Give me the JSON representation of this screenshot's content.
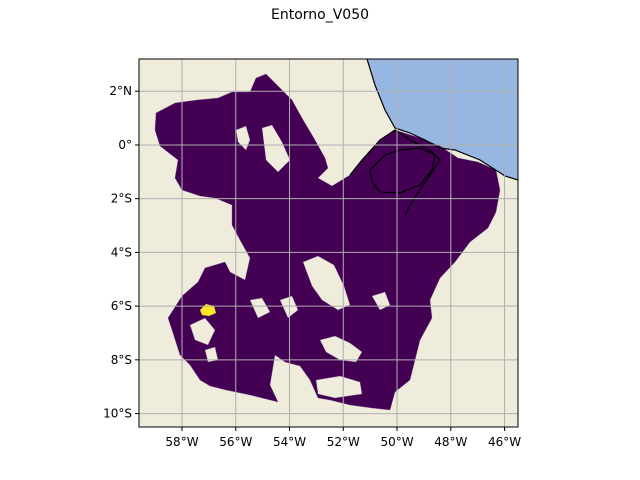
{
  "figure": {
    "title": "Entorno_V050"
  },
  "map": {
    "projection": "PlateCarree",
    "extent": {
      "lon_min": -59.6,
      "lon_max": -45.5,
      "lat_min": -10.5,
      "lat_max": 3.2
    },
    "gridlines": true,
    "x_ticks": [
      {
        "lon": -58,
        "label": "58°W"
      },
      {
        "lon": -56,
        "label": "56°W"
      },
      {
        "lon": -54,
        "label": "54°W"
      },
      {
        "lon": -52,
        "label": "52°W"
      },
      {
        "lon": -50,
        "label": "50°W"
      },
      {
        "lon": -48,
        "label": "48°W"
      },
      {
        "lon": -46,
        "label": "46°W"
      }
    ],
    "y_ticks": [
      {
        "lat": 2,
        "label": "2°N"
      },
      {
        "lat": 0,
        "label": "0°"
      },
      {
        "lat": -2,
        "label": "2°S"
      },
      {
        "lat": -4,
        "label": "4°S"
      },
      {
        "lat": -6,
        "label": "6°S"
      },
      {
        "lat": -8,
        "label": "8°S"
      },
      {
        "lat": -10,
        "label": "10°S"
      }
    ],
    "colors": {
      "land": "#efecdc",
      "ocean": "#97b6e1",
      "region_fill": "#440154",
      "highlight": "#fde725",
      "gridline": "#b0b0b0",
      "coastline": "#000000"
    },
    "colormap": "viridis",
    "highlight_region_lonlat": [
      -57.0,
      -6.1
    ]
  }
}
